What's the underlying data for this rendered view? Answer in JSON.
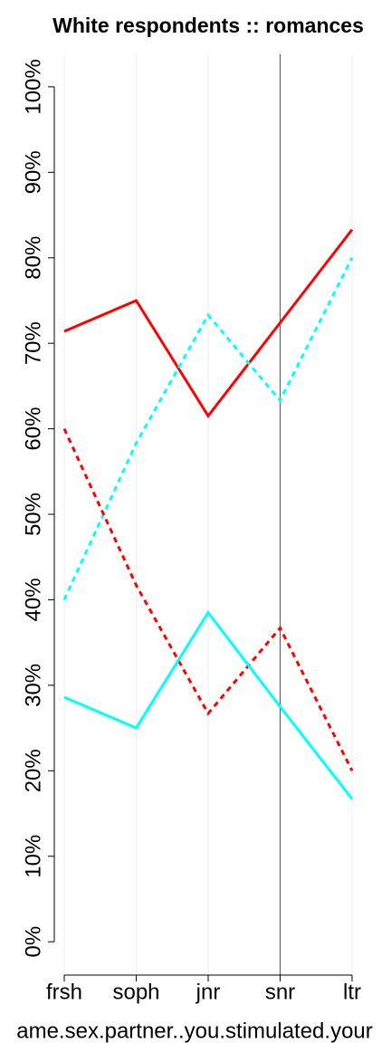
{
  "chart_data": {
    "type": "line",
    "title": "White respondents :: romances",
    "x_label": "ame.sex.partner..you.stimulated.your",
    "categories": [
      "frsh",
      "soph",
      "jnr",
      "snr",
      "ltr"
    ],
    "series": [
      {
        "color": "#ff0000",
        "linestyle": "solid",
        "values": [
          71.4,
          75,
          61.5,
          72.4,
          83.3
        ]
      },
      {
        "color": "#00ffff",
        "linestyle": "dashed",
        "values": [
          40,
          58.3,
          73.3,
          63.3,
          80
        ]
      },
      {
        "color": "#ff0000",
        "linestyle": "dashed",
        "values": [
          60,
          41.7,
          26.7,
          36.7,
          20
        ]
      },
      {
        "color": "#00ffff",
        "linestyle": "solid",
        "values": [
          28.6,
          25,
          38.5,
          27.5,
          16.7
        ]
      }
    ],
    "ylim": [
      -3.9,
      103.8
    ],
    "yticks": [
      {
        "value": 0,
        "label": "0%"
      },
      {
        "value": 10,
        "label": "10%"
      },
      {
        "value": 20,
        "label": "20%"
      },
      {
        "value": 30,
        "label": "30%"
      },
      {
        "value": 40,
        "label": "40%"
      },
      {
        "value": 50,
        "label": "50%"
      },
      {
        "value": 60,
        "label": "60%"
      },
      {
        "value": 70,
        "label": "70%"
      },
      {
        "value": 80,
        "label": "80%"
      },
      {
        "value": 90,
        "label": "90%"
      },
      {
        "value": 100,
        "label": "100%"
      }
    ],
    "grid": true,
    "vline": "snr"
  }
}
